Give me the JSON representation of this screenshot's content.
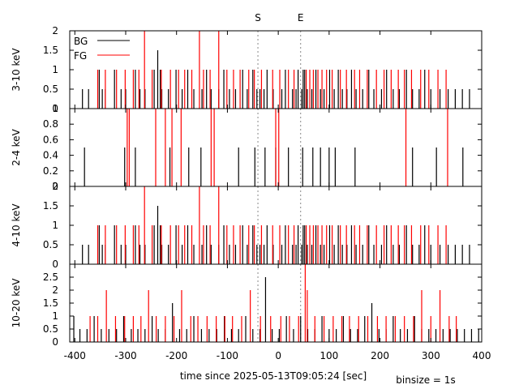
{
  "markers": [
    {
      "label": "S",
      "x": -40
    },
    {
      "label": "E",
      "x": 44
    }
  ],
  "legend": {
    "bg_label": "BG",
    "fg_label": "FG",
    "placement": "top-left"
  },
  "colors": {
    "bg": "#000000",
    "fg": "#ff0000",
    "marker": "#888888",
    "frame": "#000000"
  },
  "xlabel": "time since 2025-05-13T09:05:24 [sec]",
  "binsize_text": "binsize = 1s",
  "chart_data": [
    {
      "type": "histogram",
      "ylabel": "3-10 keV",
      "xlim": [
        -410,
        400
      ],
      "ylim": [
        0,
        2
      ],
      "yticks": [
        0,
        0.5,
        1,
        1.5,
        2
      ],
      "legend": true,
      "series": [
        {
          "name": "BG",
          "x": [
            -385,
            -373,
            -352,
            -346,
            -340,
            -322,
            -309,
            -300,
            -281,
            -272,
            -262,
            -244,
            -237,
            -232,
            -229,
            -216,
            -201,
            -189,
            -178,
            -166,
            -150,
            -141,
            -132,
            -117,
            -107,
            -96,
            -84,
            -70,
            -61,
            -50,
            -42,
            -36,
            -28,
            -22,
            -10,
            7,
            14,
            28,
            35,
            39,
            46,
            49,
            52,
            57,
            66,
            74,
            83,
            90,
            101,
            110,
            118,
            126,
            135,
            144,
            153,
            166,
            178,
            188,
            203,
            213,
            226,
            238,
            252,
            264,
            277,
            288,
            300,
            318,
            334,
            348,
            362,
            376
          ],
          "y": [
            0.5,
            0.5,
            1,
            0.5,
            0.5,
            1,
            0.5,
            0.5,
            1,
            0.5,
            0.5,
            1,
            1.5,
            1,
            0.5,
            0.5,
            1,
            0.5,
            1,
            0.5,
            0.5,
            1,
            0.5,
            0.5,
            1,
            0.5,
            0.5,
            1,
            0.5,
            1,
            0.5,
            0.5,
            0.5,
            1,
            0.5,
            0.5,
            1,
            0.5,
            0.5,
            1,
            0.5,
            1,
            1,
            0.5,
            0.5,
            1,
            0.5,
            0.5,
            1,
            0.5,
            1,
            0.5,
            0.5,
            1,
            0.5,
            0.5,
            1,
            0.5,
            0.5,
            1,
            0.5,
            0.5,
            1,
            0.5,
            0.5,
            1,
            0.5,
            0.5,
            0.5,
            0.5,
            0.5,
            0.5
          ]
        },
        {
          "name": "FG",
          "x": [
            -355,
            -340,
            -318,
            -301,
            -285,
            -274,
            -263,
            -248,
            -230,
            -212,
            -196,
            -184,
            -170,
            -155,
            -147,
            -134,
            -117,
            -101,
            -88,
            -75,
            -58,
            -47,
            -33,
            -11,
            3,
            20,
            31,
            55,
            62,
            69,
            78,
            86,
            95,
            106,
            122,
            134,
            150,
            160,
            175,
            193,
            208,
            222,
            236,
            248,
            262,
            280,
            296,
            314,
            330
          ],
          "y": [
            1,
            1,
            1,
            1,
            1,
            1,
            2,
            1,
            1,
            1,
            1,
            1,
            1,
            2,
            1,
            1,
            2,
            1,
            1,
            1,
            1,
            1,
            1,
            1,
            1,
            1,
            1,
            1,
            1,
            1,
            1,
            1,
            1,
            1,
            1,
            1,
            1,
            1,
            1,
            1,
            1,
            1,
            1,
            1,
            1,
            1,
            1,
            1,
            1
          ]
        }
      ]
    },
    {
      "type": "histogram",
      "ylabel": "2-4 keV",
      "xlim": [
        -410,
        400
      ],
      "ylim": [
        0,
        1
      ],
      "yticks": [
        0,
        0.2,
        0.4,
        0.6,
        0.8,
        1
      ],
      "legend": false,
      "series": [
        {
          "name": "BG",
          "x": [
            -381,
            -302,
            -281,
            -213,
            -176,
            -152,
            -78,
            -46,
            -26,
            -5,
            20,
            48,
            68,
            83,
            100,
            112,
            151,
            264,
            311,
            363
          ],
          "y": [
            0.5,
            0.5,
            0.5,
            0.5,
            0.5,
            0.5,
            0.5,
            0.5,
            0.5,
            0.5,
            0.5,
            0.5,
            0.5,
            0.5,
            0.5,
            0.5,
            0.5,
            0.5,
            0.5,
            0.5
          ]
        },
        {
          "name": "FG",
          "x": [
            -297,
            -293,
            -241,
            -222,
            -209,
            -191,
            -132,
            -126,
            -5,
            1,
            251,
            333
          ],
          "y": [
            1,
            1,
            1,
            1,
            1,
            1,
            1,
            1,
            1,
            1,
            1,
            1
          ]
        }
      ]
    },
    {
      "type": "histogram",
      "ylabel": "4-10 keV",
      "xlim": [
        -410,
        400
      ],
      "ylim": [
        0,
        2
      ],
      "yticks": [
        0,
        0.5,
        1,
        1.5,
        2
      ],
      "legend": false,
      "series": [
        {
          "name": "BG",
          "x": [
            -385,
            -373,
            -352,
            -346,
            -340,
            -322,
            -309,
            -300,
            -281,
            -272,
            -262,
            -244,
            -237,
            -232,
            -229,
            -216,
            -201,
            -189,
            -178,
            -166,
            -150,
            -141,
            -132,
            -117,
            -107,
            -96,
            -84,
            -70,
            -61,
            -50,
            -42,
            -36,
            -28,
            -22,
            -10,
            7,
            14,
            28,
            35,
            39,
            46,
            49,
            52,
            57,
            66,
            74,
            83,
            90,
            101,
            110,
            118,
            126,
            135,
            144,
            153,
            166,
            178,
            188,
            203,
            213,
            226,
            238,
            252,
            264,
            277,
            288,
            300,
            318,
            334,
            348,
            362,
            376
          ],
          "y": [
            0.5,
            0.5,
            1,
            0.5,
            0.5,
            1,
            0.5,
            0.5,
            1,
            0.5,
            0.5,
            1,
            1.5,
            1,
            0.5,
            0.5,
            1,
            0.5,
            1,
            0.5,
            0.5,
            1,
            0.5,
            0.5,
            1,
            0.5,
            0.5,
            1,
            0.5,
            1,
            0.5,
            0.5,
            0.5,
            1,
            0.5,
            0.5,
            1,
            0.5,
            0.5,
            1,
            0.5,
            1,
            1,
            0.5,
            0.5,
            1,
            0.5,
            0.5,
            1,
            0.5,
            1,
            0.5,
            0.5,
            1,
            0.5,
            0.5,
            1,
            0.5,
            0.5,
            1,
            0.5,
            0.5,
            1,
            0.5,
            0.5,
            1,
            0.5,
            0.5,
            0.5,
            0.5,
            0.5,
            0.5
          ]
        },
        {
          "name": "FG",
          "x": [
            -355,
            -340,
            -318,
            -301,
            -285,
            -274,
            -263,
            -248,
            -230,
            -212,
            -196,
            -184,
            -170,
            -155,
            -147,
            -134,
            -117,
            -101,
            -88,
            -75,
            -58,
            -47,
            -33,
            -11,
            3,
            20,
            31,
            55,
            62,
            69,
            78,
            86,
            95,
            106,
            122,
            134,
            150,
            160,
            175,
            193,
            208,
            222,
            236,
            248,
            262,
            280,
            296,
            314,
            330
          ],
          "y": [
            1,
            1,
            1,
            1,
            1,
            1,
            2,
            1,
            1,
            1,
            1,
            1,
            1,
            2,
            1,
            1,
            2,
            1,
            1,
            1,
            1,
            1,
            1,
            1,
            1,
            1,
            1,
            1,
            1,
            1,
            1,
            1,
            1,
            1,
            1,
            1,
            1,
            1,
            1,
            1,
            1,
            1,
            1,
            1,
            1,
            1,
            1,
            1,
            1
          ]
        }
      ]
    },
    {
      "type": "histogram",
      "ylabel": "10-20 keV",
      "xlim": [
        -410,
        400
      ],
      "ylim": [
        0,
        3
      ],
      "yticks": [
        0,
        0.5,
        1,
        1.5,
        2,
        2.5
      ],
      "legend": false,
      "series": [
        {
          "name": "BG",
          "x": [
            -402,
            -390,
            -376,
            -362,
            -348,
            -333,
            -318,
            -304,
            -289,
            -276,
            -262,
            -248,
            -236,
            -222,
            -208,
            -194,
            -180,
            -166,
            -151,
            -136,
            -121,
            -106,
            -92,
            -78,
            -64,
            -50,
            -36,
            -25,
            -12,
            2,
            16,
            30,
            44,
            58,
            72,
            86,
            100,
            114,
            128,
            142,
            156,
            170,
            184,
            198,
            212,
            226,
            240,
            254,
            268,
            282,
            296,
            310,
            324,
            338,
            352,
            366,
            380,
            394
          ],
          "y": [
            1,
            0.5,
            0.5,
            1,
            0.5,
            0.5,
            0.5,
            1,
            0.5,
            0.5,
            0.5,
            1,
            0.5,
            0.5,
            1.5,
            0.5,
            0.5,
            1,
            0.5,
            0.5,
            0.5,
            1,
            0.5,
            0.5,
            1,
            0.5,
            0.5,
            2.5,
            0.5,
            0.5,
            1,
            0.5,
            1,
            0.5,
            0.5,
            1,
            0.5,
            0.5,
            1,
            0.5,
            0.5,
            1,
            1.5,
            0.5,
            0.5,
            1,
            0.5,
            0.5,
            1,
            0.5,
            0.5,
            0.5,
            0.5,
            0.5,
            0.5,
            0.5,
            0.5,
            0.5
          ]
        },
        {
          "name": "FG",
          "x": [
            -370,
            -355,
            -338,
            -320,
            -302,
            -285,
            -270,
            -255,
            -240,
            -222,
            -205,
            -190,
            -172,
            -158,
            -140,
            -122,
            -105,
            -90,
            -72,
            -55,
            -35,
            -15,
            5,
            22,
            40,
            53,
            57,
            72,
            90,
            108,
            125,
            140,
            158,
            176,
            195,
            212,
            230,
            248,
            266,
            282,
            300,
            318,
            336,
            350
          ],
          "y": [
            1,
            1,
            2,
            1,
            1,
            1,
            1,
            2,
            1,
            1,
            1,
            2,
            1,
            1,
            1,
            1,
            1,
            1,
            1,
            2,
            1,
            1,
            1,
            1,
            1,
            3,
            2,
            1,
            1,
            1,
            1,
            1,
            1,
            1,
            1,
            1,
            1,
            1,
            1,
            2,
            1,
            2,
            1,
            1
          ]
        }
      ]
    }
  ]
}
